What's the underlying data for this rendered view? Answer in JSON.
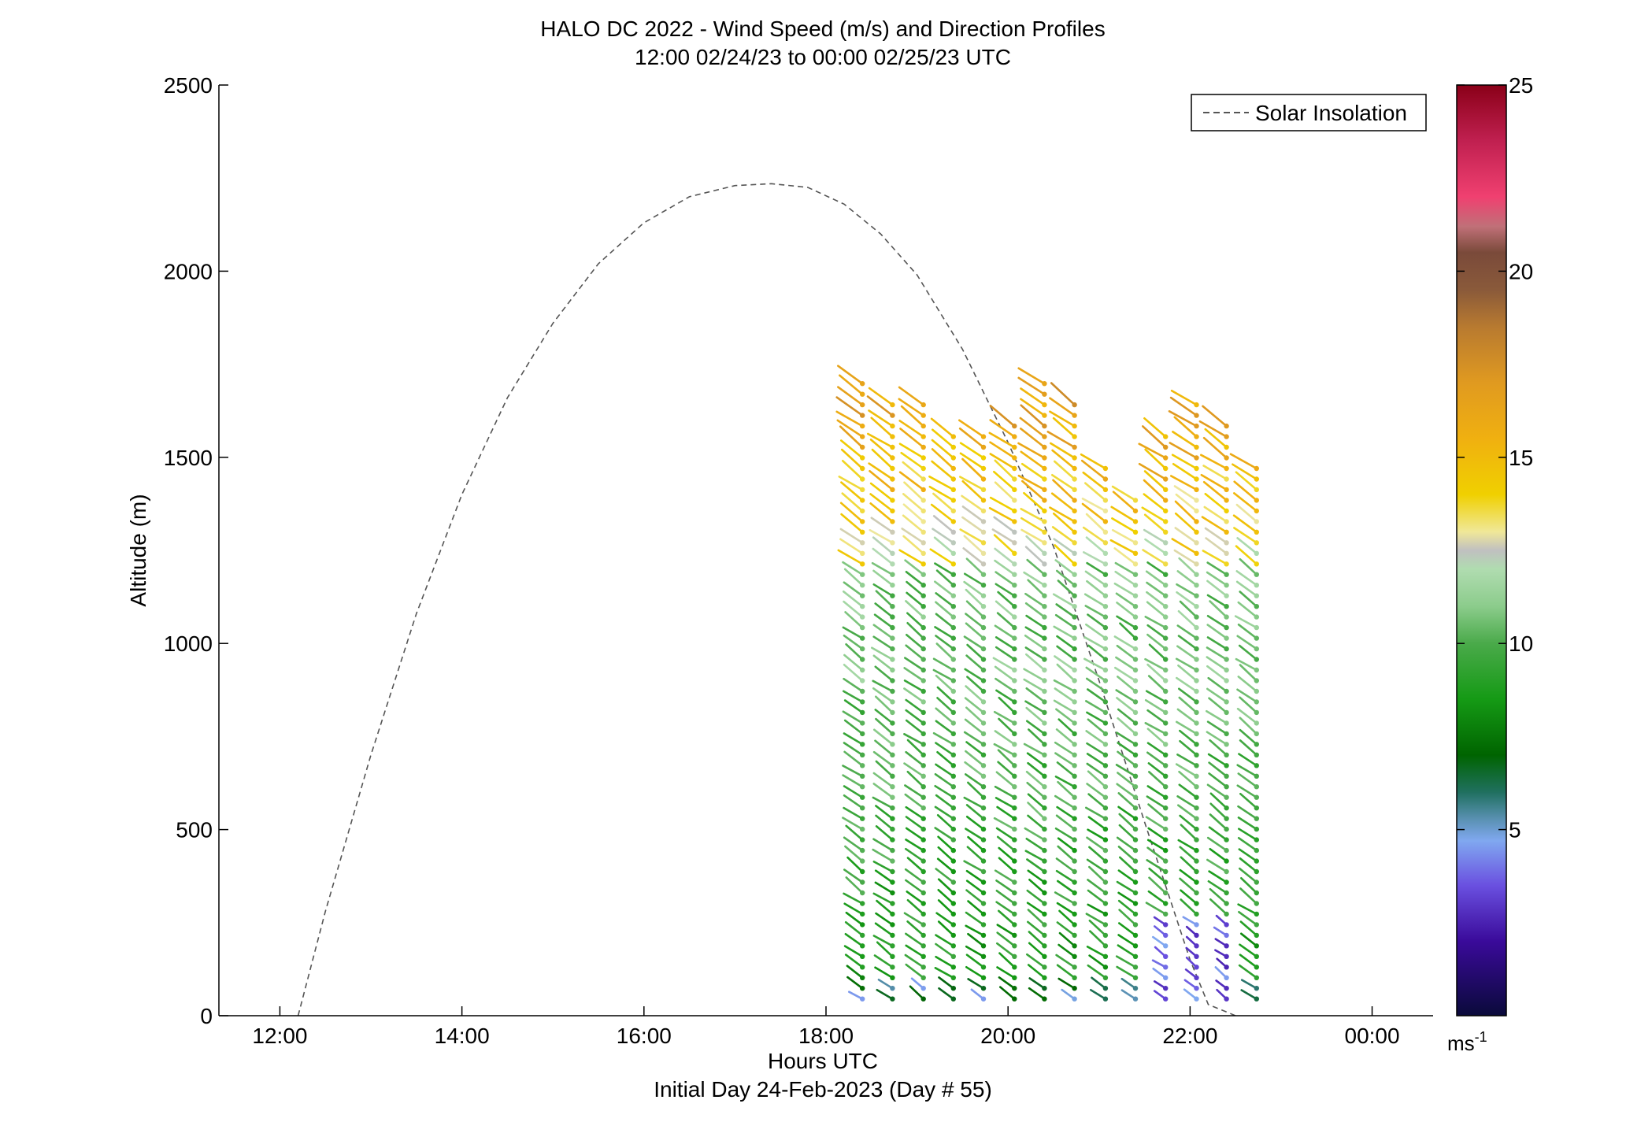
{
  "chart_data": {
    "type": "wind_barb_profile",
    "title": "HALO DC 2022 - Wind Speed (m/s) and Direction Profiles",
    "subtitle": "12:00 02/24/23 to 00:00 02/25/23  UTC",
    "xlabel": "Hours UTC",
    "xlabel2": "Initial Day 24-Feb-2023 (Day # 55)",
    "ylabel": "Altitude (m)",
    "xlim": [
      11.33,
      24.67
    ],
    "ylim": [
      0,
      2500
    ],
    "xticks": [
      12,
      14,
      16,
      18,
      20,
      22,
      24
    ],
    "xtick_labels": [
      "12:00",
      "14:00",
      "16:00",
      "18:00",
      "20:00",
      "22:00",
      "00:00"
    ],
    "yticks": [
      0,
      500,
      1000,
      1500,
      2000,
      2500
    ],
    "ytick_labels": [
      "0",
      "500",
      "1000",
      "1500",
      "2000",
      "2500"
    ],
    "legend": {
      "label": "Solar Insolation",
      "placement": "top-right",
      "line_color": "#555555"
    },
    "solar_insolation": {
      "x": [
        12.2,
        12.5,
        13.0,
        13.5,
        14.0,
        14.5,
        15.0,
        15.5,
        16.0,
        16.5,
        17.0,
        17.4,
        17.8,
        18.2,
        18.6,
        19.0,
        19.5,
        20.0,
        20.5,
        21.0,
        21.5,
        22.0,
        22.2,
        22.5
      ],
      "y": [
        0,
        280,
        700,
        1080,
        1400,
        1660,
        1860,
        2020,
        2130,
        2200,
        2230,
        2235,
        2225,
        2180,
        2100,
        1990,
        1790,
        1540,
        1260,
        900,
        520,
        150,
        30,
        0
      ]
    },
    "profile_times": [
      18.4,
      18.73,
      19.07,
      19.4,
      19.73,
      20.07,
      20.4,
      20.73,
      21.07,
      21.4,
      21.73,
      22.07,
      22.4,
      22.73
    ],
    "profile_top_altitudes": [
      1700,
      1660,
      1660,
      1570,
      1570,
      1610,
      1700,
      1660,
      1490,
      1400,
      1570,
      1660,
      1610,
      1490
    ],
    "altitude_step_m": 28.5,
    "lowest_altitude_m": 45,
    "colorbar": {
      "label": "ms-1",
      "range": [
        0,
        25
      ],
      "ticks": [
        5,
        10,
        15,
        20,
        25
      ],
      "stops": [
        {
          "v": 0,
          "c": "#0a0a3a"
        },
        {
          "v": 2,
          "c": "#3a0a9a"
        },
        {
          "v": 3.5,
          "c": "#6a50e0"
        },
        {
          "v": 4.7,
          "c": "#80a8f0"
        },
        {
          "v": 5.3,
          "c": "#5890b0"
        },
        {
          "v": 6,
          "c": "#207060"
        },
        {
          "v": 7,
          "c": "#006400"
        },
        {
          "v": 8.5,
          "c": "#159a15"
        },
        {
          "v": 10,
          "c": "#4aaa4a"
        },
        {
          "v": 11,
          "c": "#8ccc8c"
        },
        {
          "v": 12,
          "c": "#b0dcb0"
        },
        {
          "v": 12.5,
          "c": "#c0c0c0"
        },
        {
          "v": 13,
          "c": "#f0e898"
        },
        {
          "v": 14,
          "c": "#f0d000"
        },
        {
          "v": 15.5,
          "c": "#f0b010"
        },
        {
          "v": 17,
          "c": "#e09a20"
        },
        {
          "v": 18.5,
          "c": "#b87a30"
        },
        {
          "v": 19.5,
          "c": "#8a5a3a"
        },
        {
          "v": 20.5,
          "c": "#7a4a3a"
        },
        {
          "v": 21.2,
          "c": "#c07078"
        },
        {
          "v": 22,
          "c": "#f04070"
        },
        {
          "v": 23.5,
          "c": "#c02050"
        },
        {
          "v": 25,
          "c": "#8a0018"
        }
      ]
    }
  }
}
